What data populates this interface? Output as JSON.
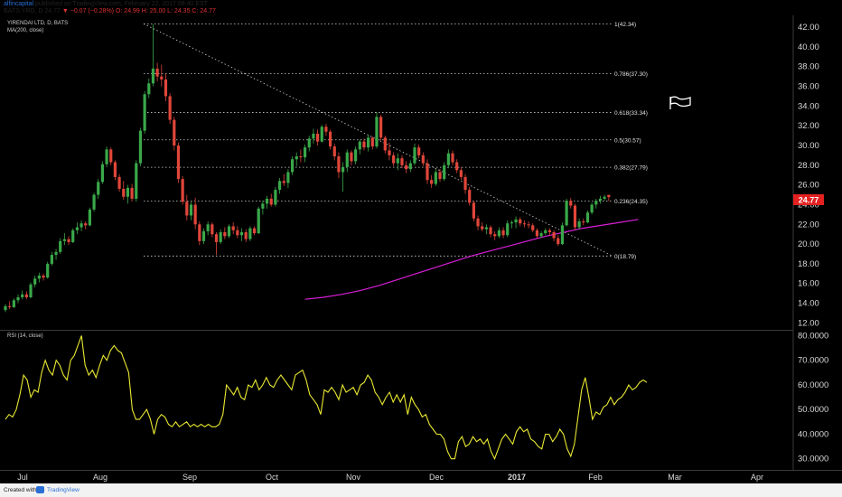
{
  "header": {
    "author": "alfincapital",
    "line1_rest": " published on TradingView.com, February 22, 2017 08:40 EST",
    "symbol": "BATS:YRD, D",
    "o": "24.77",
    "change": "▼ −0.07 (−0.28%)",
    "ohlc": "O: 24.99 H: 25.00 L: 24.35 C: 24.77"
  },
  "chart_title": "YIRENDAI LTD, D, BATS",
  "ma_label": "MA(200, close)",
  "rsi_label": "RSI (14, close)",
  "footer": {
    "created": "Created with",
    "brand": "TradingView"
  },
  "colors": {
    "background": "#000000",
    "up": "#3aa84a",
    "down": "#e0463a",
    "ma": "#d81fd8",
    "rsi": "#e8e832",
    "price_tag": "#e32121"
  },
  "chart_data": [
    {
      "type": "candlestick",
      "title": "YIRENDAI LTD, D, BATS",
      "y_ticks": [
        "42.00",
        "40.00",
        "38.00",
        "36.00",
        "34.00",
        "32.00",
        "30.00",
        "28.00",
        "26.00",
        "24.00",
        "22.00",
        "20.00",
        "18.00",
        "16.00",
        "14.00",
        "12.00"
      ],
      "x_ticks": [
        "Jul",
        "Aug",
        "Sep",
        "Oct",
        "Nov",
        "Dec",
        "2017",
        "Feb",
        "Mar",
        "Apr"
      ],
      "ylim": [
        11.3,
        43.2
      ],
      "last_price": "24.77",
      "ohlc": [
        [
          13.3,
          13.9,
          13.1,
          13.7
        ],
        [
          13.7,
          14.2,
          13.4,
          13.6
        ],
        [
          13.6,
          14.5,
          13.5,
          14.3
        ],
        [
          14.3,
          14.9,
          14.0,
          14.6
        ],
        [
          14.6,
          15.3,
          14.4,
          14.9
        ],
        [
          14.9,
          15.2,
          14.4,
          14.6
        ],
        [
          14.6,
          16.1,
          14.5,
          15.9
        ],
        [
          15.9,
          16.8,
          15.6,
          16.5
        ],
        [
          16.5,
          17.1,
          16.1,
          16.8
        ],
        [
          16.8,
          17.0,
          16.3,
          16.6
        ],
        [
          16.6,
          18.2,
          16.5,
          18.0
        ],
        [
          18.0,
          19.2,
          17.8,
          18.9
        ],
        [
          18.9,
          19.5,
          18.4,
          19.2
        ],
        [
          19.2,
          20.6,
          19.0,
          20.3
        ],
        [
          20.3,
          21.1,
          19.9,
          20.5
        ],
        [
          20.5,
          20.8,
          19.9,
          20.2
        ],
        [
          20.2,
          21.6,
          20.1,
          21.4
        ],
        [
          21.4,
          22.2,
          21.0,
          21.7
        ],
        [
          21.7,
          22.4,
          21.3,
          22.1
        ],
        [
          22.1,
          22.3,
          21.5,
          21.9
        ],
        [
          21.9,
          23.7,
          21.8,
          23.5
        ],
        [
          23.5,
          25.2,
          23.3,
          25.0
        ],
        [
          25.0,
          26.6,
          24.6,
          26.3
        ],
        [
          26.3,
          28.4,
          26.1,
          28.1
        ],
        [
          28.1,
          29.9,
          27.8,
          29.6
        ],
        [
          29.6,
          29.8,
          28.0,
          28.3
        ],
        [
          28.3,
          28.5,
          26.5,
          26.8
        ],
        [
          26.8,
          27.1,
          25.3,
          25.6
        ],
        [
          25.6,
          26.4,
          24.5,
          24.8
        ],
        [
          24.8,
          26.0,
          24.1,
          25.7
        ],
        [
          25.7,
          26.1,
          24.3,
          24.6
        ],
        [
          24.6,
          28.5,
          24.3,
          28.2
        ],
        [
          28.2,
          31.8,
          27.9,
          31.5
        ],
        [
          31.5,
          35.5,
          31.2,
          35.2
        ],
        [
          35.2,
          36.8,
          34.8,
          36.3
        ],
        [
          36.3,
          42.3,
          36.0,
          37.8
        ],
        [
          37.8,
          38.4,
          36.5,
          37.0
        ],
        [
          37.0,
          38.2,
          36.0,
          36.7
        ],
        [
          36.7,
          37.3,
          34.5,
          35.0
        ],
        [
          35.0,
          35.3,
          32.2,
          32.6
        ],
        [
          32.6,
          32.9,
          29.5,
          30.0
        ],
        [
          30.0,
          30.3,
          26.2,
          26.6
        ],
        [
          26.6,
          26.9,
          24.0,
          24.3
        ],
        [
          24.3,
          25.0,
          22.4,
          22.9
        ],
        [
          22.9,
          24.3,
          22.4,
          24.0
        ],
        [
          24.0,
          24.7,
          21.5,
          22.0
        ],
        [
          22.0,
          22.3,
          19.9,
          20.3
        ],
        [
          20.3,
          21.6,
          20.0,
          21.3
        ],
        [
          21.3,
          22.3,
          20.9,
          22.0
        ],
        [
          22.0,
          22.2,
          20.7,
          21.0
        ],
        [
          21.0,
          21.2,
          18.9,
          20.2
        ],
        [
          20.2,
          21.5,
          20.0,
          21.2
        ],
        [
          21.2,
          21.7,
          20.5,
          20.8
        ],
        [
          20.8,
          22.0,
          20.6,
          21.8
        ],
        [
          21.8,
          22.2,
          21.0,
          21.4
        ],
        [
          21.4,
          21.8,
          20.6,
          20.9
        ],
        [
          20.9,
          21.6,
          20.3,
          21.2
        ],
        [
          21.2,
          21.5,
          20.2,
          20.5
        ],
        [
          20.5,
          21.8,
          20.3,
          21.6
        ],
        [
          21.6,
          21.8,
          20.9,
          21.1
        ],
        [
          21.1,
          23.8,
          21.0,
          23.6
        ],
        [
          23.6,
          24.4,
          23.0,
          24.1
        ],
        [
          24.1,
          24.9,
          23.6,
          24.6
        ],
        [
          24.6,
          25.1,
          23.8,
          24.0
        ],
        [
          24.0,
          25.8,
          23.8,
          25.5
        ],
        [
          25.5,
          26.7,
          25.1,
          26.4
        ],
        [
          26.4,
          27.1,
          25.9,
          26.2
        ],
        [
          26.2,
          27.6,
          25.7,
          27.3
        ],
        [
          27.3,
          28.9,
          27.0,
          28.6
        ],
        [
          28.6,
          29.3,
          27.9,
          28.9
        ],
        [
          28.9,
          29.6,
          28.3,
          28.8
        ],
        [
          28.8,
          30.1,
          28.3,
          29.8
        ],
        [
          29.8,
          31.0,
          29.4,
          30.7
        ],
        [
          30.7,
          31.7,
          30.2,
          31.2
        ],
        [
          31.2,
          31.6,
          30.0,
          30.4
        ],
        [
          30.4,
          32.1,
          30.3,
          31.9
        ],
        [
          31.9,
          32.2,
          31.0,
          31.4
        ],
        [
          31.4,
          31.6,
          29.6,
          29.9
        ],
        [
          29.9,
          30.2,
          28.5,
          28.9
        ],
        [
          28.9,
          29.3,
          26.7,
          27.3
        ],
        [
          27.3,
          28.3,
          25.3,
          27.8
        ],
        [
          27.8,
          29.6,
          27.3,
          29.3
        ],
        [
          29.3,
          29.5,
          28.0,
          28.4
        ],
        [
          28.4,
          29.9,
          28.1,
          29.6
        ],
        [
          29.6,
          30.6,
          29.1,
          30.4
        ],
        [
          30.4,
          30.7,
          29.5,
          29.8
        ],
        [
          29.8,
          31.1,
          29.4,
          30.8
        ],
        [
          30.8,
          30.9,
          29.6,
          29.9
        ],
        [
          29.9,
          33.4,
          29.7,
          32.9
        ],
        [
          32.9,
          33.1,
          30.5,
          30.8
        ],
        [
          30.8,
          31.0,
          29.2,
          29.5
        ],
        [
          29.5,
          30.3,
          28.5,
          29.0
        ],
        [
          29.0,
          29.3,
          27.9,
          28.2
        ],
        [
          28.2,
          29.2,
          27.5,
          28.7
        ],
        [
          28.7,
          29.0,
          27.7,
          28.0
        ],
        [
          28.0,
          28.4,
          27.2,
          27.6
        ],
        [
          27.6,
          28.5,
          27.3,
          28.2
        ],
        [
          28.2,
          30.2,
          28.0,
          29.8
        ],
        [
          29.8,
          30.1,
          28.7,
          29.0
        ],
        [
          29.0,
          29.3,
          27.9,
          28.2
        ],
        [
          28.2,
          28.6,
          26.1,
          26.5
        ],
        [
          26.5,
          27.0,
          25.7,
          26.1
        ],
        [
          26.1,
          27.6,
          25.9,
          27.3
        ],
        [
          27.3,
          27.6,
          26.3,
          26.6
        ],
        [
          26.6,
          28.3,
          26.4,
          28.0
        ],
        [
          28.0,
          29.6,
          27.7,
          29.2
        ],
        [
          29.2,
          29.5,
          28.0,
          28.3
        ],
        [
          28.3,
          28.6,
          27.2,
          27.5
        ],
        [
          27.5,
          27.8,
          26.5,
          26.8
        ],
        [
          26.8,
          27.1,
          25.1,
          25.5
        ],
        [
          25.5,
          25.8,
          23.9,
          24.2
        ],
        [
          24.2,
          24.4,
          22.3,
          22.6
        ],
        [
          22.6,
          22.9,
          21.4,
          21.8
        ],
        [
          21.8,
          22.2,
          21.3,
          21.5
        ],
        [
          21.5,
          22.0,
          21.0,
          21.7
        ],
        [
          21.7,
          21.9,
          20.7,
          21.0
        ],
        [
          21.0,
          21.3,
          20.4,
          20.8
        ],
        [
          20.8,
          21.7,
          20.6,
          21.4
        ],
        [
          21.4,
          21.7,
          20.6,
          20.9
        ],
        [
          20.9,
          22.4,
          20.7,
          22.1
        ],
        [
          22.1,
          22.4,
          21.6,
          22.2
        ],
        [
          22.2,
          22.8,
          21.6,
          22.5
        ],
        [
          22.5,
          22.7,
          21.8,
          22.1
        ],
        [
          22.1,
          22.4,
          21.7,
          22.0
        ],
        [
          22.0,
          22.3,
          21.6,
          21.9
        ],
        [
          21.9,
          22.1,
          21.2,
          21.4
        ],
        [
          21.4,
          21.6,
          20.6,
          20.8
        ],
        [
          20.8,
          21.3,
          20.6,
          21.1
        ],
        [
          21.1,
          21.6,
          20.9,
          21.4
        ],
        [
          21.4,
          21.6,
          20.9,
          21.2
        ],
        [
          21.2,
          21.4,
          20.3,
          20.6
        ],
        [
          20.6,
          20.9,
          19.8,
          20.0
        ],
        [
          20.0,
          22.2,
          19.9,
          21.9
        ],
        [
          21.9,
          24.6,
          21.8,
          24.4
        ],
        [
          24.4,
          24.7,
          23.6,
          23.9
        ],
        [
          23.9,
          24.1,
          21.4,
          21.7
        ],
        [
          21.7,
          22.6,
          21.5,
          22.3
        ],
        [
          22.3,
          22.6,
          21.9,
          22.2
        ],
        [
          22.2,
          23.4,
          22.1,
          23.2
        ],
        [
          23.2,
          24.2,
          23.0,
          24.0
        ],
        [
          24.0,
          24.6,
          23.6,
          24.4
        ],
        [
          24.4,
          24.9,
          24.1,
          24.6
        ],
        [
          24.6,
          25.0,
          24.4,
          24.8
        ],
        [
          24.99,
          25.0,
          24.35,
          24.77
        ]
      ],
      "ma200_x_range": [
        71,
        150
      ],
      "ma200": [
        14.4,
        14.6,
        14.9,
        15.3,
        15.8,
        16.4,
        17.0,
        17.6,
        18.2,
        18.8,
        19.3,
        19.8,
        20.3,
        20.8,
        21.2,
        21.6,
        21.9,
        22.2,
        22.5
      ],
      "fibonacci": {
        "high": 42.34,
        "low": 18.79,
        "levels": [
          {
            "label": "1(42.34)",
            "value": 42.34
          },
          {
            "label": "0.786(37.30)",
            "value": 37.3
          },
          {
            "label": "0.618(33.34)",
            "value": 33.34
          },
          {
            "label": "0.5(30.57)",
            "value": 30.57
          },
          {
            "label": "0.382(27.79)",
            "value": 27.79
          },
          {
            "label": "0.236(24.35)",
            "value": 24.35
          },
          {
            "label": "0(18.79)",
            "value": 18.79
          }
        ]
      }
    },
    {
      "type": "line",
      "title": "RSI (14, close)",
      "y_ticks": [
        "80.0000",
        "70.0000",
        "60.0000",
        "50.0000",
        "40.0000",
        "30.0000"
      ],
      "ylim": [
        25.5,
        82.0
      ],
      "values": [
        46,
        48,
        47,
        50,
        56,
        64,
        62,
        55,
        58,
        57,
        65,
        70,
        66,
        64,
        70,
        68,
        64,
        62,
        70,
        72,
        76,
        80,
        68,
        64,
        66,
        63,
        68,
        72,
        70,
        74,
        76,
        74,
        73,
        69,
        65,
        50,
        46,
        46,
        48,
        50,
        46,
        40,
        46,
        48,
        47,
        44,
        43,
        45,
        43,
        44,
        45,
        43,
        44,
        43,
        44,
        43,
        44,
        43,
        43,
        44,
        48,
        60,
        58,
        56,
        59,
        55,
        54,
        60,
        59,
        62,
        58,
        60,
        63,
        60,
        59,
        62,
        64,
        62,
        60,
        58,
        64,
        65,
        66,
        62,
        56,
        54,
        52,
        48,
        58,
        57,
        59,
        57,
        54,
        60,
        57,
        58,
        59,
        56,
        60,
        61,
        64,
        62,
        57,
        55,
        52,
        55,
        57,
        53,
        56,
        53,
        56,
        48,
        55,
        52,
        50,
        47,
        48,
        44,
        42,
        40,
        40,
        38,
        33,
        30,
        30,
        37,
        39,
        35,
        36,
        39,
        37,
        38,
        36,
        38,
        33,
        30,
        34,
        38,
        40,
        38,
        36,
        41,
        43,
        41,
        42,
        38,
        37,
        35,
        34,
        40,
        40,
        37,
        39,
        42,
        40,
        34,
        31,
        36,
        47,
        58,
        63,
        55,
        46,
        49,
        48,
        51,
        52,
        55,
        52,
        54,
        55,
        57,
        60,
        58,
        59,
        61,
        62,
        61
      ]
    }
  ]
}
